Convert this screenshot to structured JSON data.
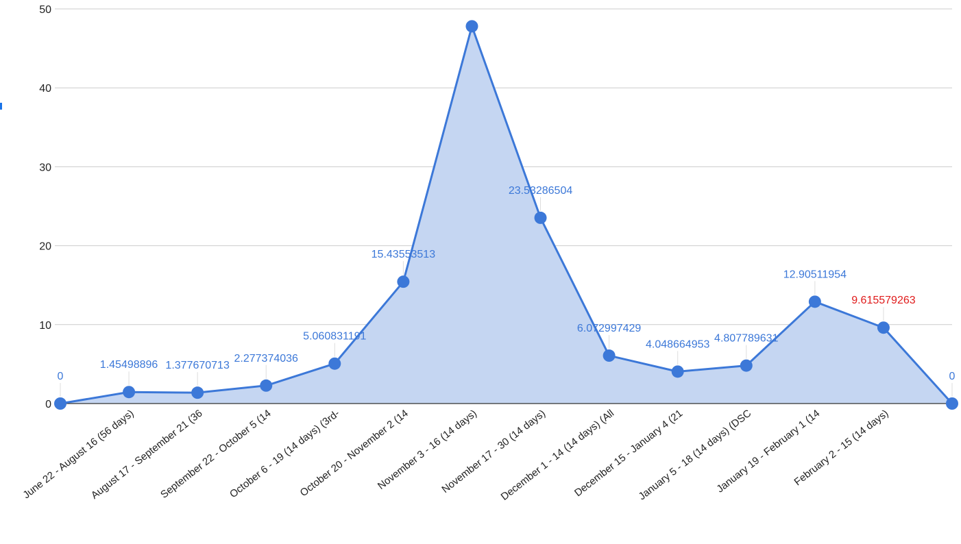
{
  "chart_data": {
    "type": "area",
    "categories": [
      "",
      "June 22 - August 16 (56 days)",
      "August 17 - September 21 (36",
      "September 22 - October 5 (14",
      "October 6 - 19 (14 days) (3rd-",
      "October 20 - November 2 (14",
      "November 3 - 16 (14 days)",
      "November 17 - 30 (14 days)",
      "December 1 - 14 (14 days) (All",
      "December 15 - January 4 (21",
      "January 5 - 18 (14 days) (DSC",
      "January 19 - February 1 (14",
      "February 2 - 15 (14 days)",
      ""
    ],
    "values": [
      0,
      1.45498896,
      1.377670713,
      2.277374036,
      5.060831191,
      15.43553513,
      47.8,
      23.53286504,
      6.072997429,
      4.048664953,
      4.807789631,
      12.90511954,
      9.615579263,
      0
    ],
    "data_labels": [
      "0",
      "1.45498896",
      "1.377670713",
      "2.277374036",
      "5.060831191",
      "15.43553513",
      "",
      "23.53286504",
      "6.072997429",
      "4.048664953",
      "4.807789631",
      "12.90511954",
      "9.615579263",
      "0"
    ],
    "highlighted_label_index": 12,
    "ylim": [
      0,
      50
    ],
    "yticks": [
      0,
      10,
      20,
      30,
      40,
      50
    ],
    "grid": true,
    "legend": "none",
    "title": "",
    "xlabel": "",
    "ylabel": "",
    "colors": {
      "line": "#3c78d8",
      "fill": "#c5d6f2",
      "label": "#3c78d8",
      "highlight_label": "#e01b1b",
      "grid": "#cccccc",
      "axis": "#333333"
    }
  }
}
